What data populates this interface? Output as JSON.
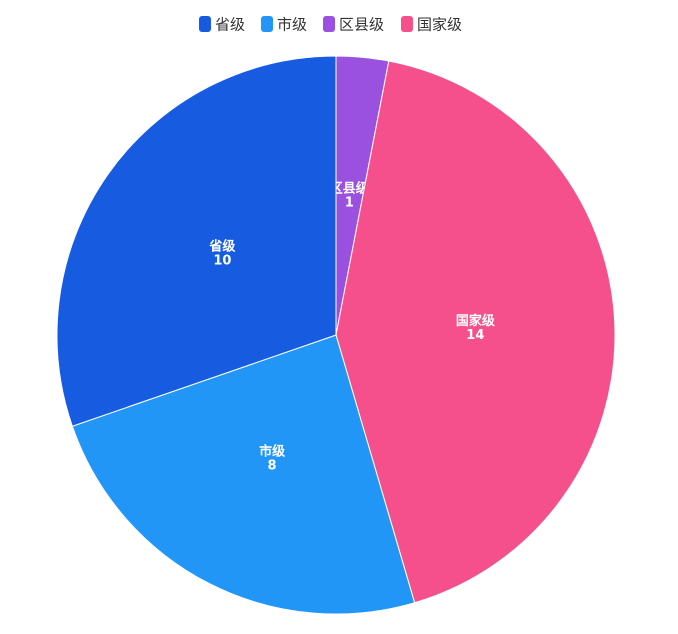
{
  "chart_data": {
    "type": "pie",
    "legend": [
      "省级",
      "市级",
      "区县级",
      "国家级"
    ],
    "categories": [
      "区县级",
      "国家级",
      "市级",
      "省级"
    ],
    "values": [
      1,
      14,
      8,
      10
    ],
    "colors": [
      "#9b51e0",
      "#f5508b",
      "#2196f7",
      "#175ce0"
    ]
  }
}
